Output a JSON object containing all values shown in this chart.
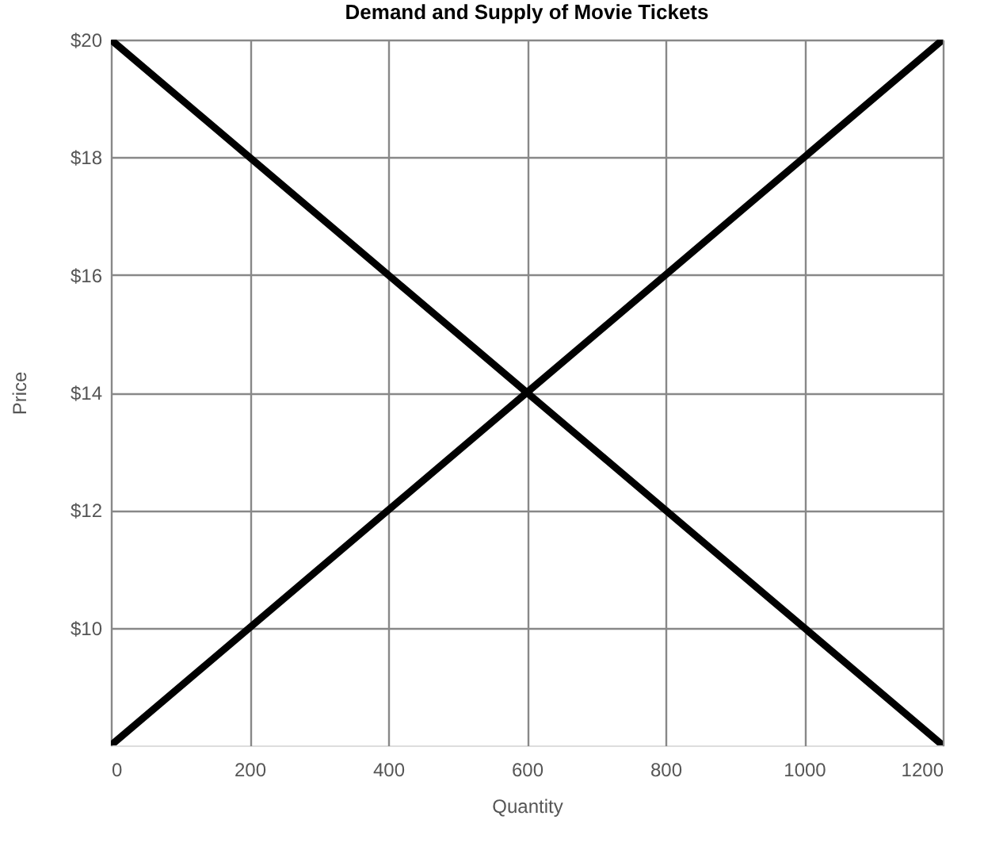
{
  "chart_data": {
    "type": "line",
    "title": "Demand and Supply of Movie Tickets",
    "xlabel": "Quantity",
    "ylabel": "Price",
    "x": [
      0,
      600,
      1200
    ],
    "series": [
      {
        "color": "#000000",
        "values": [
          20,
          14,
          8
        ]
      },
      {
        "color": "#000000",
        "values": [
          8,
          14,
          20
        ]
      }
    ],
    "xlim": [
      0,
      1200
    ],
    "xticks": [
      0,
      200,
      400,
      600,
      800,
      1000,
      1200
    ],
    "ylim": [
      8,
      20
    ],
    "yticks": [
      {
        "value": 10,
        "label": "$10"
      },
      {
        "value": 12,
        "label": "$12"
      },
      {
        "value": 14,
        "label": "$14"
      },
      {
        "value": 16,
        "label": "$16"
      },
      {
        "value": 18,
        "label": "$18"
      },
      {
        "value": 20,
        "label": "$20"
      }
    ],
    "grid": true,
    "legend": false,
    "line_style": "solid"
  }
}
